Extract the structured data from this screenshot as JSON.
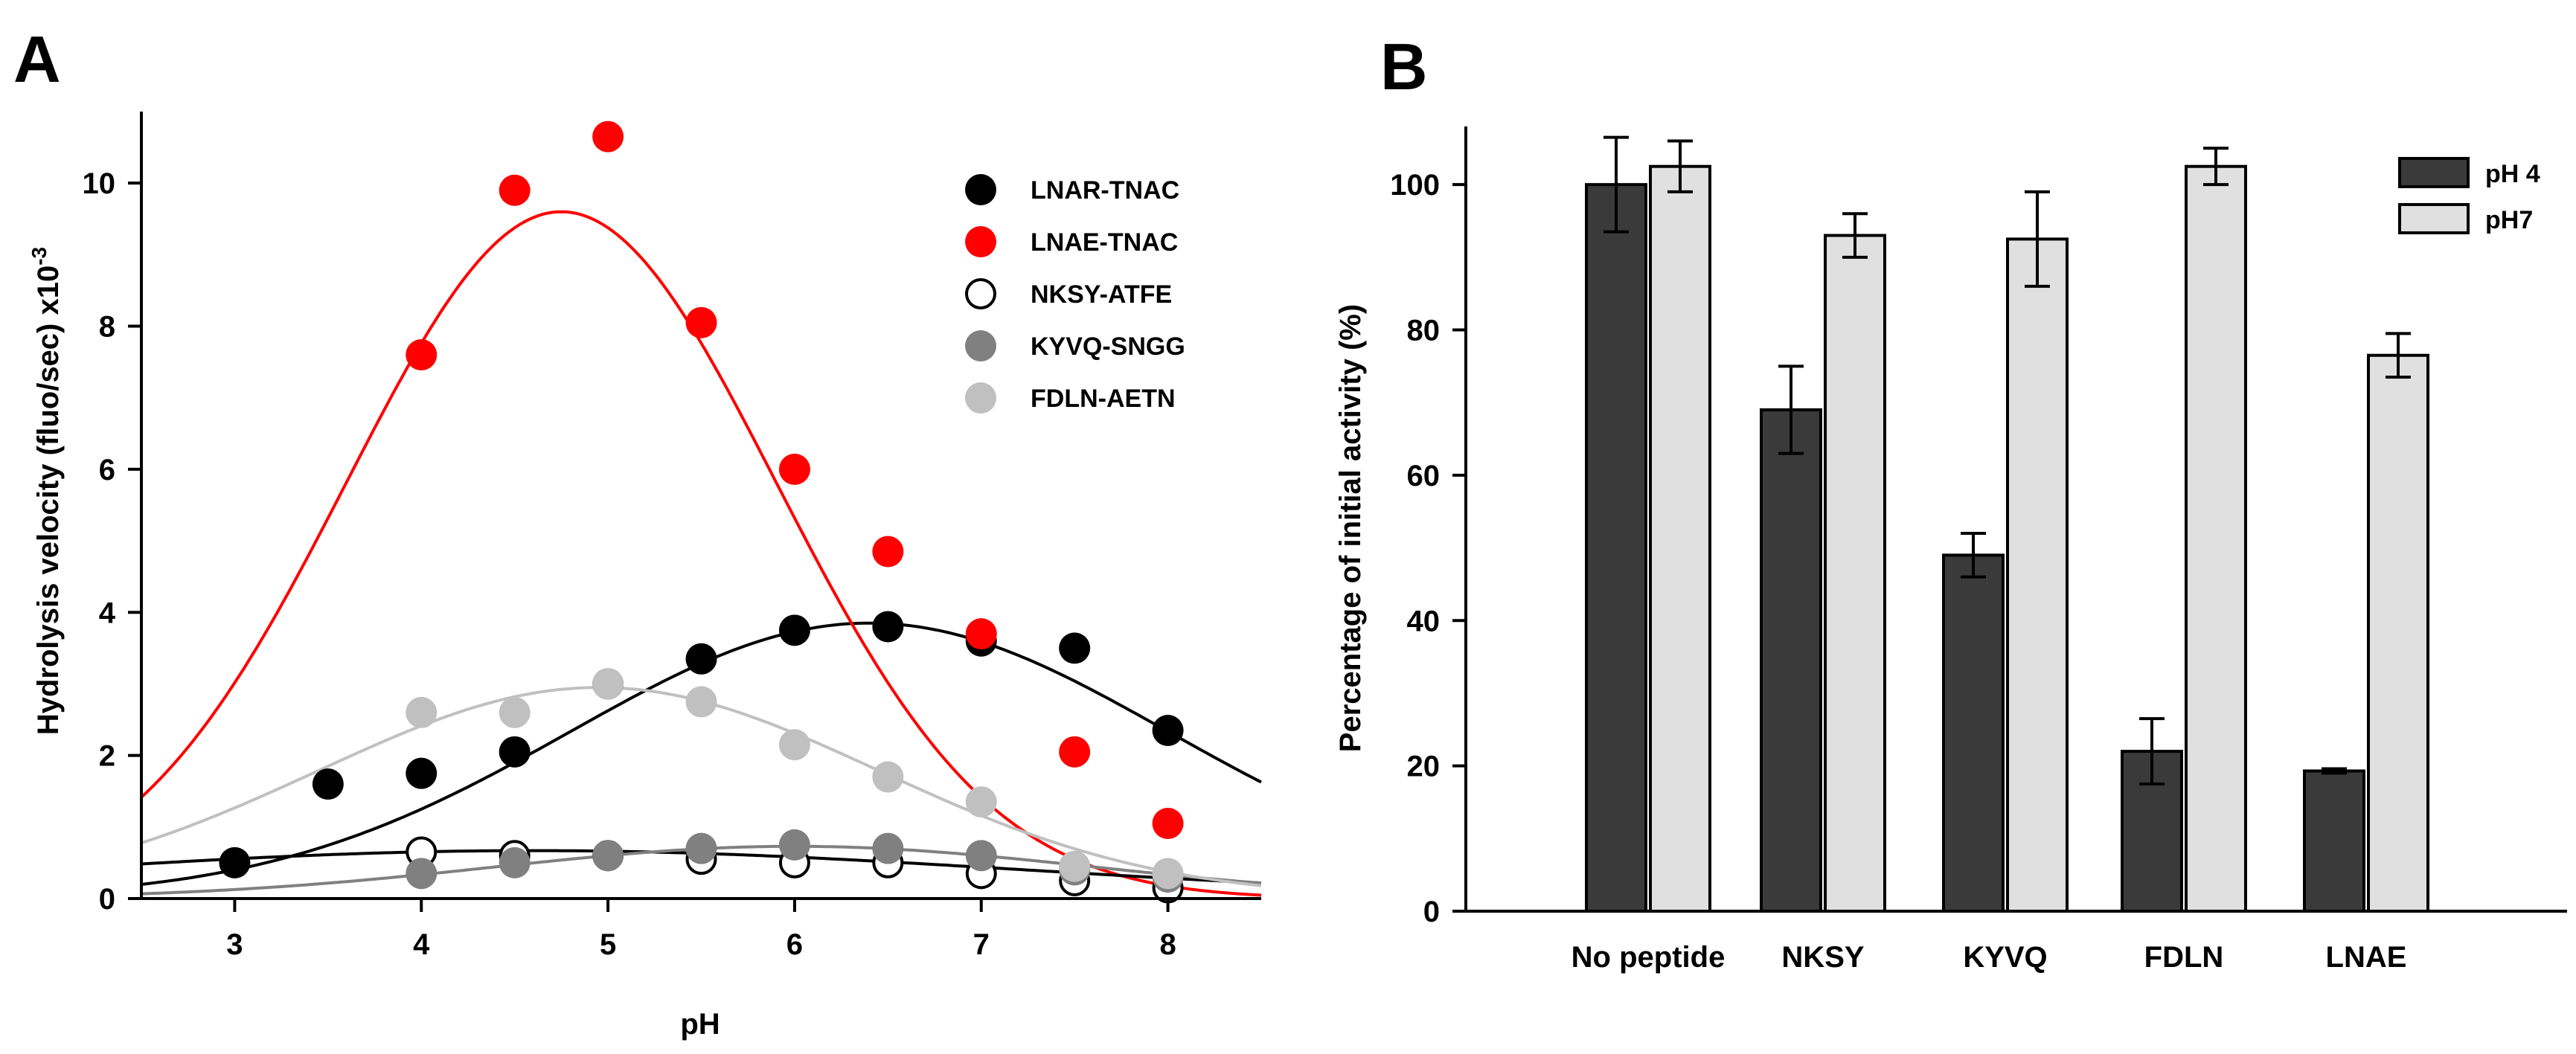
{
  "chart_data": [
    {
      "id": "A",
      "panel_label": "A",
      "type": "scatter",
      "xlabel": "pH",
      "ylabel_main": "Hydrolysis velocity  (fluo/sec) x10",
      "ylabel_exp": "-3",
      "xlim": [
        2.5,
        8.5
      ],
      "ylim": [
        0,
        11
      ],
      "xticks": [
        3,
        4,
        5,
        6,
        7,
        8
      ],
      "yticks": [
        0,
        2,
        4,
        6,
        8,
        10
      ],
      "legend_position": "top-right",
      "series": [
        {
          "name": "LNAR-TNAC",
          "color": "#000000",
          "marker": "filled",
          "curve_color": "#000000",
          "points": [
            [
              3,
              0.5
            ],
            [
              3.5,
              1.6
            ],
            [
              4,
              1.75
            ],
            [
              4.5,
              2.05
            ],
            [
              5,
              3.0
            ],
            [
              5.5,
              3.35
            ],
            [
              6,
              3.75
            ],
            [
              6.5,
              3.8
            ],
            [
              7,
              3.6
            ],
            [
              7.5,
              3.5
            ],
            [
              8,
              2.35
            ]
          ],
          "curve": {
            "amplitude": 3.85,
            "center": 6.4,
            "width": 1.6,
            "baseline": 0
          }
        },
        {
          "name": "LNAE-TNAC",
          "color": "#ff0000",
          "marker": "filled",
          "curve_color": "#ff0000",
          "points": [
            [
              4,
              7.6
            ],
            [
              4.5,
              9.9
            ],
            [
              5,
              10.65
            ],
            [
              5.5,
              8.05
            ],
            [
              6,
              6.0
            ],
            [
              6.5,
              4.85
            ],
            [
              7,
              3.7
            ],
            [
              7.5,
              2.05
            ],
            [
              8,
              1.05
            ]
          ],
          "curve": {
            "amplitude": 9.6,
            "center": 4.75,
            "width": 1.15,
            "baseline": 0
          }
        },
        {
          "name": "NKSY-ATFE",
          "color": "#000000",
          "marker": "open",
          "curve_color": "#000000",
          "points": [
            [
              4,
              0.65
            ],
            [
              4.5,
              0.6
            ],
            [
              5,
              0.6
            ],
            [
              5.5,
              0.55
            ],
            [
              6,
              0.5
            ],
            [
              6.5,
              0.5
            ],
            [
              7,
              0.35
            ],
            [
              7.5,
              0.25
            ],
            [
              8,
              0.15
            ]
          ],
          "curve": {
            "amplitude": 0.67,
            "center": 4.6,
            "width": 2.6,
            "baseline": 0
          }
        },
        {
          "name": "KYVQ-SNGG",
          "color": "#808080",
          "marker": "filled",
          "curve_color": "#808080",
          "points": [
            [
              4,
              0.35
            ],
            [
              4.5,
              0.5
            ],
            [
              5,
              0.6
            ],
            [
              5.5,
              0.7
            ],
            [
              6,
              0.75
            ],
            [
              6.5,
              0.7
            ],
            [
              7,
              0.6
            ],
            [
              7.5,
              0.4
            ],
            [
              8,
              0.3
            ]
          ],
          "curve": {
            "amplitude": 0.73,
            "center": 6.0,
            "width": 1.6,
            "baseline": 0
          }
        },
        {
          "name": "FDLN-AETN",
          "color": "#c0c0c0",
          "marker": "filled",
          "curve_color": "#c0c0c0",
          "points": [
            [
              4,
              2.6
            ],
            [
              4.5,
              2.6
            ],
            [
              5,
              3.0
            ],
            [
              5.5,
              2.75
            ],
            [
              6,
              2.15
            ],
            [
              6.5,
              1.7
            ],
            [
              7,
              1.35
            ],
            [
              7.5,
              0.45
            ],
            [
              8,
              0.35
            ]
          ],
          "curve": {
            "amplitude": 2.95,
            "center": 4.95,
            "width": 1.5,
            "baseline": 0
          }
        }
      ]
    },
    {
      "id": "B",
      "panel_label": "B",
      "type": "bar",
      "ylabel": "Percentage of initial activity (%)",
      "xlabel": "",
      "ylim": [
        0,
        108
      ],
      "yticks": [
        0,
        20,
        40,
        60,
        80,
        100
      ],
      "categories": [
        "No peptide",
        "NKSY",
        "KYVQ",
        "FDLN",
        "LNAE"
      ],
      "legend_position": "top-right",
      "series": [
        {
          "name": "pH 4",
          "color": "#3a3a3a",
          "values": [
            100,
            69,
            49,
            22,
            19.3
          ],
          "errors": [
            6.5,
            6,
            3,
            4.5,
            0.3
          ]
        },
        {
          "name": "pH7",
          "color": "#e0e0e0",
          "values": [
            102.5,
            93,
            92.5,
            102.5,
            76.5
          ],
          "errors": [
            3.5,
            3,
            6.5,
            2.5,
            3
          ]
        }
      ]
    }
  ]
}
